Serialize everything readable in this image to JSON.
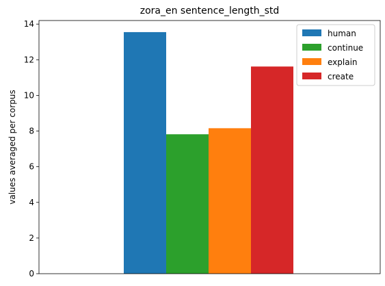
{
  "chart_data": {
    "type": "bar",
    "title": "zora_en sentence_length_std",
    "xlabel": "",
    "ylabel": "values averaged per corpus",
    "ylim": [
      0,
      14.2
    ],
    "yticks": [
      0,
      2,
      4,
      6,
      8,
      10,
      12,
      14
    ],
    "grid": false,
    "legend_position": "top-right",
    "series": [
      {
        "name": "human",
        "values": [
          13.55
        ],
        "color": "#1f77b4"
      },
      {
        "name": "continue",
        "values": [
          7.82
        ],
        "color": "#2ca02c"
      },
      {
        "name": "explain",
        "values": [
          8.16
        ],
        "color": "#ff7f0e"
      },
      {
        "name": "create",
        "values": [
          11.62
        ],
        "color": "#d62728"
      }
    ]
  }
}
